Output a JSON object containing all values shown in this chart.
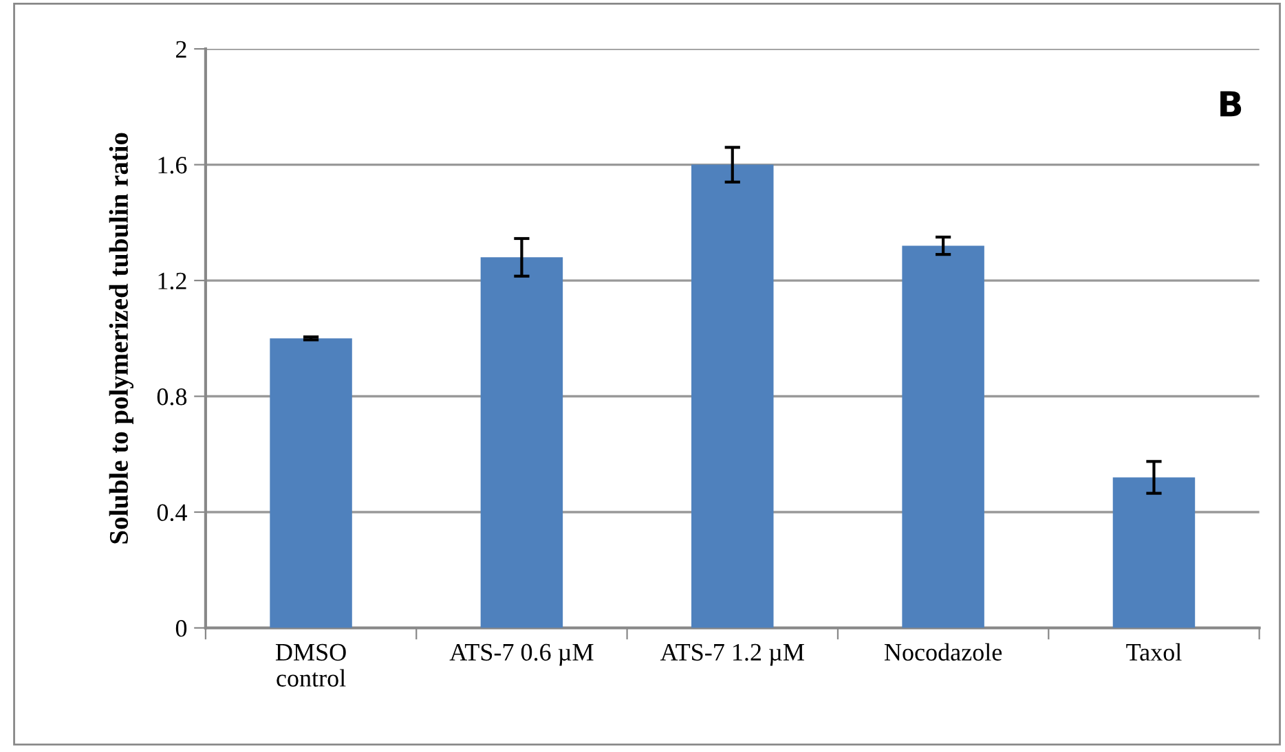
{
  "chart_data": {
    "type": "bar",
    "ylabel": "Soluble to polymerized tubulin ratio",
    "categories": [
      "DMSO\ncontrol",
      "ATS-7 0.6 µM",
      "ATS-7 1.2 µM",
      "Nocodazole",
      "Taxol"
    ],
    "values": [
      1.0,
      1.28,
      1.6,
      1.32,
      0.52
    ],
    "errors": [
      0.005,
      0.065,
      0.06,
      0.03,
      0.055
    ],
    "color": "#4f81bd",
    "ylim": [
      0,
      2
    ],
    "yticks": [
      {
        "value": 0,
        "label": "0"
      },
      {
        "value": 0.4,
        "label": "0.4"
      },
      {
        "value": 0.8,
        "label": "0.8"
      },
      {
        "value": 1.2,
        "label": "1.2"
      },
      {
        "value": 1.6,
        "label": "1.6"
      },
      {
        "value": 2,
        "label": "2"
      }
    ],
    "grid": "y",
    "annotations": [
      "B"
    ]
  }
}
